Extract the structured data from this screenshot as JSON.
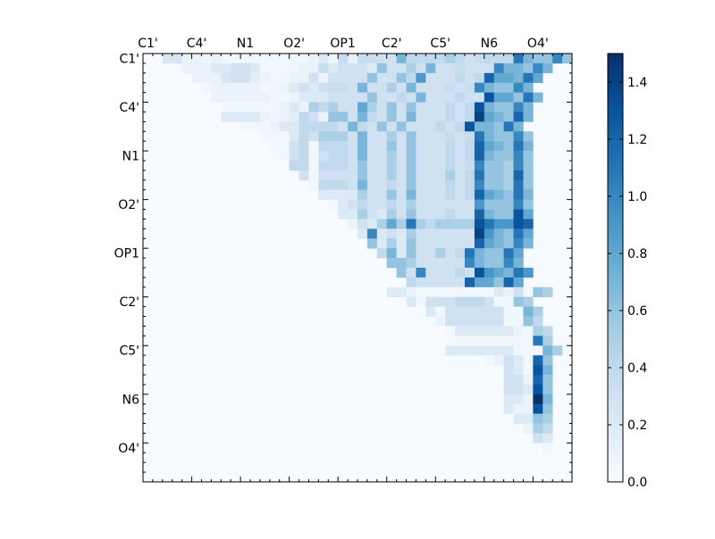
{
  "chart_data": {
    "type": "heatmap",
    "title": "",
    "xlabel": "",
    "ylabel": "",
    "size": 44,
    "row_tick_labels": [
      "C1'",
      "C4'",
      "N1",
      "O2'",
      "OP1",
      "C2'",
      "C5'",
      "N6",
      "O4'"
    ],
    "col_tick_labels": [
      "C1'",
      "C4'",
      "N1",
      "O2'",
      "OP1",
      "C2'",
      "C5'",
      "N6",
      "O4'"
    ],
    "colorbar": {
      "min": 0.0,
      "max": 1.5,
      "ticks": [
        "0.0",
        "0.2",
        "0.4",
        "0.6",
        "0.8",
        "1.0",
        "1.2",
        "1.4"
      ],
      "colormap": "Blues"
    },
    "grid": false,
    "value_description": "upper-triangular pairwise matrix; lower triangle near 0",
    "rows": [
      {
        "start": 2,
        "values": [
          0.25,
          0.25,
          0.1,
          0.1,
          0.05,
          0.1,
          0.05,
          0.05,
          0.05,
          0.05,
          0.05,
          0.05,
          0.05,
          0.05,
          0.05,
          0.1,
          0.2,
          0.05,
          0.35,
          0.1,
          0.35,
          0.35,
          0.3,
          0.3,
          0.7,
          0.4,
          0.4,
          0.4,
          0.4,
          0.5,
          0.4,
          0.3,
          0.35,
          0.4,
          0.4,
          0.4,
          1.1,
          0.7,
          0.6,
          0.6,
          1.0,
          0.6
        ]
      },
      {
        "start": 4,
        "values": [
          0.1,
          0.1,
          0.1,
          0.2,
          0.2,
          0.3,
          0.3,
          0.2,
          0.05,
          0.05,
          0.05,
          0.05,
          0.1,
          0.1,
          0.35,
          0.2,
          0.3,
          0.3,
          0.3,
          0.2,
          0.6,
          0.3,
          0.3,
          0.5,
          0.3,
          0.7,
          0.3,
          0.3,
          0.35,
          0.3,
          0.3,
          0.3,
          1.0,
          0.7,
          0.7,
          0.6,
          1.0,
          0.7
        ]
      },
      {
        "start": 5,
        "values": [
          0.1,
          0.1,
          0.1,
          0.25,
          0.3,
          0.3,
          0.15,
          0.1,
          0.05,
          0.05,
          0.1,
          0.1,
          0.3,
          0.1,
          0.3,
          0.3,
          0.3,
          0.3,
          0.6,
          0.3,
          0.3,
          0.6,
          0.4,
          0.9,
          0.3,
          0.3,
          0.3,
          0.4,
          0.3,
          0.4,
          1.2,
          0.8,
          0.8,
          0.7,
          1.1,
          0.8
        ]
      },
      {
        "start": 6,
        "values": [
          0.05,
          0.1,
          0.1,
          0.1,
          0.1,
          0.1,
          0.05,
          0.05,
          0.1,
          0.2,
          0.3,
          0.2,
          0.3,
          0.35,
          0.35,
          0.3,
          0.7,
          0.3,
          0.3,
          0.5,
          0.3,
          0.7,
          0.3,
          0.3,
          0.3,
          0.35,
          0.3,
          0.35,
          1.0,
          0.7,
          0.6,
          0.6,
          1.0,
          0.7
        ]
      },
      {
        "start": 7,
        "values": [
          0.1,
          0.1,
          0.1,
          0.1,
          0.1,
          0.1,
          0.05,
          0.05,
          0.1,
          0.2,
          0.2,
          0.2,
          0.3,
          0.3,
          0.3,
          0.3,
          0.6,
          0.3,
          0.3,
          0.4,
          0.3,
          0.7,
          0.3,
          0.3,
          0.3,
          0.4,
          0.3,
          0.3,
          1.3,
          0.8,
          0.8,
          0.6,
          1.1,
          0.7
        ]
      },
      {
        "start": 8,
        "values": [
          0.05,
          0.05,
          0.05,
          0.05,
          0.05,
          0.05,
          0.1,
          0.2,
          0.1,
          0.5,
          0.4,
          0.5,
          0.3,
          0.3,
          0.8,
          0.5,
          0.3,
          0.6,
          0.3,
          0.6,
          0.3,
          0.3,
          0.3,
          0.4,
          0.3,
          0.4,
          1.3,
          0.7,
          0.6,
          0.6,
          1.0,
          0.7
        ]
      },
      {
        "start": 8,
        "values": [
          0.2,
          0.2,
          0.2,
          0.2,
          0.1,
          0.05,
          0.1,
          0.15,
          0.4,
          0.3,
          0.1,
          0.6,
          0.6,
          0.3,
          0.7,
          0.4,
          0.3,
          0.6,
          0.3,
          0.7,
          0.3,
          0.3,
          0.3,
          0.4,
          0.3,
          0.4,
          1.4,
          0.8,
          0.7,
          0.6,
          1.2,
          0.7
        ]
      },
      {
        "start": 10,
        "values": [
          0.05,
          0.05,
          0.05,
          0.1,
          0.2,
          0.2,
          0.4,
          0.4,
          0.4,
          0.4,
          0.3,
          0.7,
          0.4,
          0.3,
          0.6,
          0.3,
          0.6,
          0.3,
          0.3,
          0.3,
          0.4,
          0.3,
          0.4,
          1.3,
          0.7,
          0.7,
          0.6,
          1.1,
          0.7
        ]
      },
      {
        "start": 12,
        "values": [
          0.05,
          0.05,
          0.05,
          0.2,
          0.4,
          0.3,
          0.5,
          0.5,
          0.5,
          0.3,
          0.7,
          0.3,
          0.3,
          0.5,
          0.3,
          0.6,
          0.3,
          0.3,
          0.3,
          0.35,
          0.3,
          0.35,
          1.1,
          0.7,
          0.6,
          0.6,
          1.0,
          0.6
        ]
      },
      {
        "start": 13,
        "values": [
          0.05,
          0.05,
          0.3,
          0.4,
          0.05,
          0.4,
          0.4,
          0.4,
          0.3,
          0.7,
          0.3,
          0.3,
          0.6,
          0.3,
          0.6,
          0.3,
          0.3,
          0.3,
          0.4,
          0.3,
          0.4,
          1.2,
          0.8,
          0.7,
          0.6,
          1.1,
          0.7
        ]
      },
      {
        "start": 14,
        "values": [
          0.05,
          0.3,
          0.4,
          0.05,
          0.3,
          0.4,
          0.4,
          0.3,
          0.7,
          0.3,
          0.3,
          0.5,
          0.3,
          0.6,
          0.3,
          0.3,
          0.3,
          0.4,
          0.3,
          0.4,
          1.2,
          0.7,
          0.6,
          0.6,
          1.0,
          0.6
        ]
      },
      {
        "start": 15,
        "values": [
          0.4,
          0.4,
          0.05,
          0.4,
          0.4,
          0.4,
          0.3,
          0.6,
          0.3,
          0.3,
          0.5,
          0.3,
          0.6,
          0.3,
          0.3,
          0.3,
          0.4,
          0.3,
          0.35,
          1.0,
          0.6,
          0.6,
          0.5,
          1.0,
          0.6
        ]
      },
      {
        "start": 16,
        "values": [
          0.3,
          0.05,
          0.3,
          0.3,
          0.3,
          0.3,
          0.6,
          0.3,
          0.3,
          0.5,
          0.3,
          0.6,
          0.3,
          0.3,
          0.3,
          0.5,
          0.3,
          0.4,
          1.1,
          0.6,
          0.6,
          0.5,
          1.2,
          0.6
        ]
      },
      {
        "start": 17,
        "values": [
          0.05,
          0.4,
          0.4,
          0.4,
          0.3,
          0.7,
          0.3,
          0.3,
          0.4,
          0.3,
          0.6,
          0.3,
          0.3,
          0.3,
          0.4,
          0.3,
          0.4,
          1.0,
          0.6,
          0.6,
          0.5,
          1.1,
          0.6
        ]
      },
      {
        "start": 18,
        "values": [
          0.2,
          0.2,
          0.2,
          0.2,
          0.5,
          0.3,
          0.3,
          0.6,
          0.3,
          0.7,
          0.3,
          0.3,
          0.3,
          0.4,
          0.3,
          0.4,
          1.2,
          0.8,
          0.7,
          0.6,
          1.1,
          0.7
        ]
      },
      {
        "start": 19,
        "values": [
          0.05,
          0.2,
          0.3,
          0.4,
          0.3,
          0.3,
          0.4,
          0.3,
          0.5,
          0.3,
          0.3,
          0.3,
          0.3,
          0.3,
          0.3,
          0.9,
          0.6,
          0.6,
          0.6,
          1.0,
          0.6
        ]
      },
      {
        "start": 20,
        "values": [
          0.2,
          0.2,
          0.5,
          0.3,
          0.2,
          0.5,
          0.3,
          0.6,
          0.3,
          0.3,
          0.3,
          0.4,
          0.3,
          0.3,
          1.2,
          0.7,
          0.6,
          0.6,
          1.3,
          0.8
        ]
      },
      {
        "start": 21,
        "values": [
          0.1,
          0.3,
          0.2,
          0.5,
          0.8,
          0.5,
          1.1,
          0.5,
          0.4,
          0.5,
          0.5,
          0.5,
          0.5,
          1.3,
          1.1,
          0.9,
          0.9,
          1.3,
          1.2
        ]
      },
      {
        "start": 22,
        "values": [
          0.2,
          1.0,
          0.2,
          0.3,
          0.2,
          0.5,
          0.3,
          0.3,
          0.3,
          0.3,
          0.3,
          0.3,
          1.4,
          0.9,
          0.7,
          0.6,
          1.1,
          0.8
        ]
      },
      {
        "start": 23,
        "values": [
          0.6,
          0.2,
          0.5,
          0.2,
          0.6,
          0.3,
          0.3,
          0.3,
          0.3,
          0.3,
          0.3,
          1.2,
          0.8,
          0.7,
          0.6,
          1.0,
          0.7
        ]
      },
      {
        "start": 24,
        "values": [
          0.4,
          0.7,
          0.2,
          0.6,
          0.3,
          0.3,
          0.5,
          0.3,
          0.4,
          1.1,
          0.7,
          0.6,
          0.6,
          1.1,
          0.8
        ]
      },
      {
        "start": 25,
        "values": [
          0.6,
          0.6,
          0.5,
          0.3,
          0.3,
          0.3,
          0.3,
          0.3,
          1.0,
          0.7,
          0.6,
          0.6,
          1.0,
          0.7
        ]
      },
      {
        "start": 26,
        "values": [
          0.6,
          0.3,
          1.0,
          0.3,
          0.3,
          0.3,
          0.4,
          0.3,
          1.3,
          0.9,
          0.8,
          0.7,
          1.1,
          0.9
        ]
      },
      {
        "start": 27,
        "values": [
          0.4,
          0.3,
          0.3,
          0.3,
          0.3,
          0.3,
          1.2,
          0.8,
          0.8,
          0.6,
          1.2,
          0.8
        ]
      },
      {
        "start": 25,
        "values": [
          0.2,
          0.2,
          0.1,
          0.05,
          0.05,
          0.05,
          0.05,
          0.05,
          0.05,
          0.05,
          0.05,
          0.2,
          0.1,
          0.3,
          0.05,
          0.6,
          0.5
        ]
      },
      {
        "start": 27,
        "values": [
          0.2,
          0.05,
          0.3,
          0.3,
          0.3,
          0.4,
          0.4,
          0.4,
          0.3,
          0.05,
          0.05,
          0.6,
          0.5
        ]
      },
      {
        "start": 29,
        "values": [
          0.2,
          0.05,
          0.3,
          0.3,
          0.3,
          0.3,
          0.3,
          0.3,
          0.05,
          0.05,
          0.7,
          0.5
        ]
      },
      {
        "start": 30,
        "values": [
          0.1,
          0.3,
          0.3,
          0.3,
          0.3,
          0.3,
          0.3,
          0.05,
          0.05,
          0.6,
          0.4
        ]
      },
      {
        "start": 31,
        "values": [
          0.05,
          0.2,
          0.2,
          0.2,
          0.2,
          0.2,
          0.2,
          0.1,
          0.05,
          0.5,
          0.4
        ]
      },
      {
        "start": 32,
        "values": [
          0.05,
          0.05,
          0.05,
          0.05,
          0.05,
          0.05,
          0.05,
          0.05,
          1.1,
          0.5
        ]
      },
      {
        "start": 31,
        "values": [
          0.2,
          0.2,
          0.2,
          0.2,
          0.2,
          0.2,
          0.2,
          0.05,
          0.05,
          0.05,
          0.7,
          0.5
        ]
      },
      {
        "start": 35,
        "values": [
          0.05,
          0.1,
          0.3,
          0.2,
          0.05,
          1.2,
          0.6
        ]
      },
      {
        "start": 37,
        "values": [
          0.3,
          0.2,
          0.05,
          1.3,
          0.7
        ]
      },
      {
        "start": 37,
        "values": [
          0.3,
          0.3,
          0.1,
          1.2,
          0.6
        ]
      },
      {
        "start": 37,
        "values": [
          0.3,
          0.3,
          0.2,
          1.3,
          0.6
        ]
      },
      {
        "start": 37,
        "values": [
          0.2,
          0.2,
          0.1,
          1.5,
          0.7
        ]
      },
      {
        "start": 37,
        "values": [
          0.2,
          0.1,
          0.1,
          1.3,
          0.6
        ]
      },
      {
        "start": 38,
        "values": [
          0.2,
          0.2,
          0.6,
          0.5
        ]
      },
      {
        "start": 39,
        "values": [
          0.1,
          0.5,
          0.4
        ]
      },
      {
        "start": 40,
        "values": [
          0.3,
          0.2
        ]
      },
      {
        "start": 41,
        "values": [
          0.05
        ]
      }
    ]
  }
}
